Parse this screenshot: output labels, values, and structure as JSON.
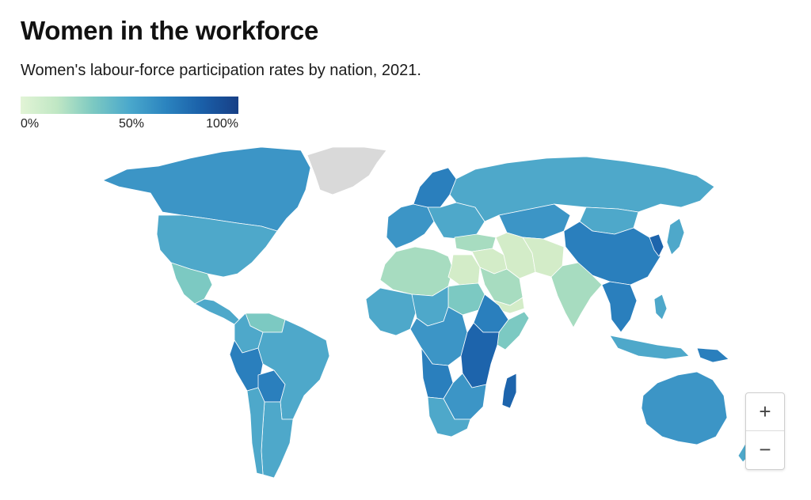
{
  "title": "Women in the workforce",
  "subtitle": "Women's labour-force participation rates by nation, 2021.",
  "legend": {
    "labels": [
      "0%",
      "50%",
      "100%"
    ],
    "colors": [
      "#e2f4d6",
      "#c0e7c4",
      "#7cc9c2",
      "#4aa8cc",
      "#2b84bf",
      "#1a5fa8",
      "#173f86"
    ]
  },
  "zoom": {
    "in_label": "+",
    "out_label": "−"
  },
  "colors": {
    "no_data": "#d9d9d9",
    "very_low": "#d3ecc8",
    "low": "#a7dcc0",
    "low_mid": "#7cc9c2",
    "mid": "#4ea8ca",
    "mid_high": "#3c95c6",
    "high": "#2a7fbd",
    "very_high": "#1d64ac"
  },
  "regions": [
    {
      "name": "Greenland",
      "value_class": "no_data"
    },
    {
      "name": "Canada",
      "value_class": "mid_high"
    },
    {
      "name": "United States",
      "value_class": "mid"
    },
    {
      "name": "Mexico",
      "value_class": "low_mid"
    },
    {
      "name": "Central America",
      "value_class": "mid"
    },
    {
      "name": "Venezuela",
      "value_class": "low_mid"
    },
    {
      "name": "Colombia",
      "value_class": "mid"
    },
    {
      "name": "Peru",
      "value_class": "high"
    },
    {
      "name": "Bolivia",
      "value_class": "high"
    },
    {
      "name": "Brazil",
      "value_class": "mid"
    },
    {
      "name": "Argentina",
      "value_class": "mid"
    },
    {
      "name": "Chile",
      "value_class": "mid"
    },
    {
      "name": "Western Europe",
      "value_class": "mid_high"
    },
    {
      "name": "Scandinavia",
      "value_class": "high"
    },
    {
      "name": "Eastern Europe",
      "value_class": "mid"
    },
    {
      "name": "Russia",
      "value_class": "mid"
    },
    {
      "name": "Kazakhstan",
      "value_class": "mid_high"
    },
    {
      "name": "Mongolia",
      "value_class": "mid"
    },
    {
      "name": "China",
      "value_class": "high"
    },
    {
      "name": "Korea",
      "value_class": "very_high"
    },
    {
      "name": "Japan",
      "value_class": "mid"
    },
    {
      "name": "Turkey",
      "value_class": "low"
    },
    {
      "name": "Middle East",
      "value_class": "very_low"
    },
    {
      "name": "Saudi Arabia",
      "value_class": "low"
    },
    {
      "name": "Yemen",
      "value_class": "very_low"
    },
    {
      "name": "Iran",
      "value_class": "very_low"
    },
    {
      "name": "Afghanistan and Pakistan",
      "value_class": "very_low"
    },
    {
      "name": "India",
      "value_class": "low"
    },
    {
      "name": "Southeast Asia",
      "value_class": "high"
    },
    {
      "name": "Indonesia",
      "value_class": "mid"
    },
    {
      "name": "Philippines",
      "value_class": "mid"
    },
    {
      "name": "Papua New Guinea",
      "value_class": "high"
    },
    {
      "name": "Australia",
      "value_class": "mid_high"
    },
    {
      "name": "New Zealand",
      "value_class": "mid"
    },
    {
      "name": "North Africa",
      "value_class": "low"
    },
    {
      "name": "Egypt",
      "value_class": "very_low"
    },
    {
      "name": "Sudan",
      "value_class": "low_mid"
    },
    {
      "name": "West Africa",
      "value_class": "mid"
    },
    {
      "name": "Sahel",
      "value_class": "mid"
    },
    {
      "name": "Ethiopia",
      "value_class": "high"
    },
    {
      "name": "Somalia",
      "value_class": "low_mid"
    },
    {
      "name": "Central Africa",
      "value_class": "mid_high"
    },
    {
      "name": "East Africa",
      "value_class": "very_high"
    },
    {
      "name": "Angola",
      "value_class": "high"
    },
    {
      "name": "Southern Africa",
      "value_class": "mid_high"
    },
    {
      "name": "South Africa",
      "value_class": "mid"
    },
    {
      "name": "Madagascar",
      "value_class": "very_high"
    }
  ]
}
